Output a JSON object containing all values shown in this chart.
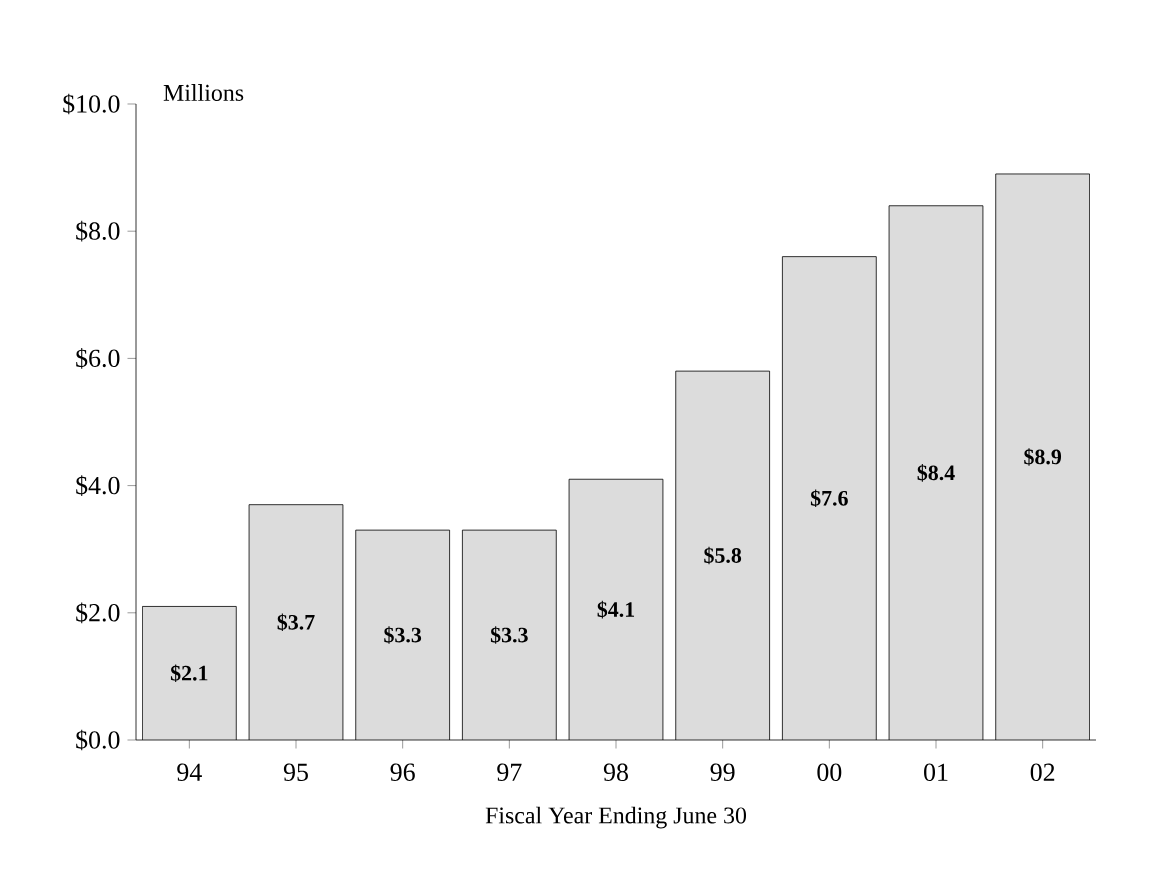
{
  "chart_data": {
    "type": "bar",
    "ylabel": "Millions",
    "xlabel": "Fiscal Year Ending June 30",
    "categories": [
      "94",
      "95",
      "96",
      "97",
      "98",
      "99",
      "00",
      "01",
      "02"
    ],
    "values": [
      2.1,
      3.7,
      3.3,
      3.3,
      4.1,
      5.8,
      7.6,
      8.4,
      8.9
    ],
    "value_labels": [
      "$2.1",
      "$3.7",
      "$3.3",
      "$3.3",
      "$4.1",
      "$5.8",
      "$7.6",
      "$8.4",
      "$8.9"
    ],
    "color": "#dcdcdc",
    "ylim": [
      0,
      10
    ],
    "yticks": [
      {
        "value": 0,
        "label": "$0.0"
      },
      {
        "value": 2,
        "label": "$2.0"
      },
      {
        "value": 4,
        "label": "$4.0"
      },
      {
        "value": 6,
        "label": "$6.0"
      },
      {
        "value": 8,
        "label": "$8.0"
      },
      {
        "value": 10,
        "label": "$10.0"
      }
    ]
  }
}
